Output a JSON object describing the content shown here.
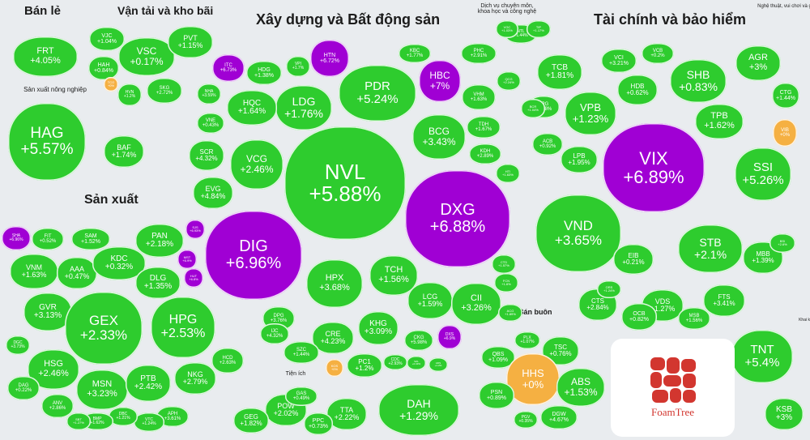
{
  "chart_data": {
    "type": "treemap",
    "colors": {
      "up": "#2ecc2e",
      "ceiling": "#a000d4",
      "flat": "#f5b042"
    },
    "sectors": [
      {
        "name": "Bán lẻ"
      },
      {
        "name": "Vận tải và kho bãi"
      },
      {
        "name": "Xây dựng và Bất động sản"
      },
      {
        "name": "Dịch vụ chuyên môn, khoa học và công nghệ"
      },
      {
        "name": "Tài chính và bảo hiểm"
      },
      {
        "name": "Nghệ thuật, vui chơi và giải trí"
      },
      {
        "name": "Sản xuất nông nghiệp"
      },
      {
        "name": "Sản xuất"
      },
      {
        "name": "Bán buôn"
      },
      {
        "name": "Tiện ích"
      },
      {
        "name": "Khai khoáng"
      }
    ],
    "stocks": [
      {
        "symbol": "FRT",
        "change": "+4.05%",
        "status": "up"
      },
      {
        "symbol": "VJC",
        "change": "+1.04%",
        "status": "up"
      },
      {
        "symbol": "VSC",
        "change": "+0.17%",
        "status": "up"
      },
      {
        "symbol": "PVT",
        "change": "+1.15%",
        "status": "up"
      },
      {
        "symbol": "HAH",
        "change": "+0.84%",
        "status": "up"
      },
      {
        "symbol": "SKG",
        "change": "+2.72%",
        "status": "up"
      },
      {
        "symbol": "HVN",
        "change": "+1.2%",
        "status": "up"
      },
      {
        "symbol": "TCO",
        "change": "+0%",
        "status": "flat"
      },
      {
        "symbol": "HAG",
        "change": "+5.57%",
        "status": "up"
      },
      {
        "symbol": "BAF",
        "change": "+1.74%",
        "status": "up"
      },
      {
        "symbol": "ITC",
        "change": "+6.73%",
        "status": "ceiling"
      },
      {
        "symbol": "HDG",
        "change": "+1.38%",
        "status": "up"
      },
      {
        "symbol": "VPI",
        "change": "+1.7%",
        "status": "up"
      },
      {
        "symbol": "HTN",
        "change": "+6.72%",
        "status": "ceiling"
      },
      {
        "symbol": "KBC",
        "change": "+1.77%",
        "status": "up"
      },
      {
        "symbol": "PHC",
        "change": "+2.91%",
        "status": "up"
      },
      {
        "symbol": "PDR",
        "change": "+5.24%",
        "status": "up"
      },
      {
        "symbol": "HBC",
        "change": "+7%",
        "status": "ceiling"
      },
      {
        "symbol": "VHM",
        "change": "+1.63%",
        "status": "up"
      },
      {
        "symbol": "LDG",
        "change": "+1.76%",
        "status": "up"
      },
      {
        "symbol": "HQC",
        "change": "+1.64%",
        "status": "up"
      },
      {
        "symbol": "NHA",
        "change": "+3.59%",
        "status": "up"
      },
      {
        "symbol": "VNE",
        "change": "+0.43%",
        "status": "up"
      },
      {
        "symbol": "BCG",
        "change": "+3.43%",
        "status": "up"
      },
      {
        "symbol": "TDH",
        "change": "+1.67%",
        "status": "up"
      },
      {
        "symbol": "KDH",
        "change": "+2.89%",
        "status": "up"
      },
      {
        "symbol": "VCG",
        "change": "+2.46%",
        "status": "up"
      },
      {
        "symbol": "SCR",
        "change": "+4.32%",
        "status": "up"
      },
      {
        "symbol": "NVL",
        "change": "+5.88%",
        "status": "up"
      },
      {
        "symbol": "EVG",
        "change": "+4.84%",
        "status": "up"
      },
      {
        "symbol": "DIG",
        "change": "+6.96%",
        "status": "ceiling"
      },
      {
        "symbol": "DXG",
        "change": "+6.88%",
        "status": "ceiling"
      },
      {
        "symbol": "HPX",
        "change": "+3.68%",
        "status": "up"
      },
      {
        "symbol": "TCH",
        "change": "+1.56%",
        "status": "up"
      },
      {
        "symbol": "LCG",
        "change": "+1.59%",
        "status": "up"
      },
      {
        "symbol": "CII",
        "change": "+3.26%",
        "status": "up"
      },
      {
        "symbol": "DPG",
        "change": "+3.76%",
        "status": "up"
      },
      {
        "symbol": "IJC",
        "change": "+4.32%",
        "status": "up"
      },
      {
        "symbol": "CRE",
        "change": "+4.23%",
        "status": "up"
      },
      {
        "symbol": "KHG",
        "change": "+3.09%",
        "status": "up"
      },
      {
        "symbol": "SZC",
        "change": "+1.44%",
        "status": "up"
      },
      {
        "symbol": "CKG",
        "change": "+5.98%",
        "status": "up"
      },
      {
        "symbol": "DXS",
        "change": "+6.9%",
        "status": "ceiling"
      },
      {
        "symbol": "PC1",
        "change": "+1.2%",
        "status": "up"
      },
      {
        "symbol": "KOS",
        "change": "+0%",
        "status": "flat"
      },
      {
        "symbol": "CDC",
        "change": "+2.93%",
        "status": "up"
      },
      {
        "symbol": "TCB",
        "change": "+1.81%",
        "status": "up"
      },
      {
        "symbol": "VCI",
        "change": "+3.21%",
        "status": "up"
      },
      {
        "symbol": "VCB",
        "change": "+0.2%",
        "status": "up"
      },
      {
        "symbol": "AGR",
        "change": "+3%",
        "status": "up"
      },
      {
        "symbol": "SHB",
        "change": "+0.83%",
        "status": "up"
      },
      {
        "symbol": "HDB",
        "change": "+0.62%",
        "status": "up"
      },
      {
        "symbol": "APG",
        "change": "+1.38%",
        "status": "up"
      },
      {
        "symbol": "CTG",
        "change": "+1.44%",
        "status": "up"
      },
      {
        "symbol": "VPB",
        "change": "+1.23%",
        "status": "up"
      },
      {
        "symbol": "TPB",
        "change": "+1.62%",
        "status": "up"
      },
      {
        "symbol": "VIB",
        "change": "+0%",
        "status": "flat"
      },
      {
        "symbol": "ACB",
        "change": "+0.92%",
        "status": "up"
      },
      {
        "symbol": "LPB",
        "change": "+1.95%",
        "status": "up"
      },
      {
        "symbol": "VIX",
        "change": "+6.89%",
        "status": "ceiling"
      },
      {
        "symbol": "SSI",
        "change": "+5.26%",
        "status": "up"
      },
      {
        "symbol": "VND",
        "change": "+3.65%",
        "status": "up"
      },
      {
        "symbol": "EIB",
        "change": "+0.21%",
        "status": "up"
      },
      {
        "symbol": "STB",
        "change": "+2.1%",
        "status": "up"
      },
      {
        "symbol": "MBB",
        "change": "+1.39%",
        "status": "up"
      },
      {
        "symbol": "CTS",
        "change": "+2.84%",
        "status": "up"
      },
      {
        "symbol": "VDS",
        "change": "+1.27%",
        "status": "up"
      },
      {
        "symbol": "FTS",
        "change": "+3.41%",
        "status": "up"
      },
      {
        "symbol": "OCB",
        "change": "+0.82%",
        "status": "up"
      },
      {
        "symbol": "MSB",
        "change": "+1.56%",
        "status": "up"
      },
      {
        "symbol": "TNT",
        "change": "+5.4%",
        "status": "up"
      },
      {
        "symbol": "KSB",
        "change": "+3%",
        "status": "up"
      },
      {
        "symbol": "QBS",
        "change": "+1.09%",
        "status": "up"
      },
      {
        "symbol": "PLX",
        "change": "+1.07%",
        "status": "up"
      },
      {
        "symbol": "TSC",
        "change": "+0.76%",
        "status": "up"
      },
      {
        "symbol": "HHS",
        "change": "+0%",
        "status": "flat"
      },
      {
        "symbol": "ABS",
        "change": "+1.53%",
        "status": "up"
      },
      {
        "symbol": "PSN",
        "change": "+0.89%",
        "status": "up"
      },
      {
        "symbol": "PGV",
        "change": "+0.35%",
        "status": "up"
      },
      {
        "symbol": "DGW",
        "change": "+4.67%",
        "status": "up"
      },
      {
        "symbol": "DAH",
        "change": "+1.29%",
        "status": "up"
      },
      {
        "symbol": "POW",
        "change": "+2.02%",
        "status": "up"
      },
      {
        "symbol": "TTA",
        "change": "+2.22%",
        "status": "up"
      },
      {
        "symbol": "GEG",
        "change": "+1.82%",
        "status": "up"
      },
      {
        "symbol": "PPC",
        "change": "+0.73%",
        "status": "up"
      },
      {
        "symbol": "GAS",
        "change": "+0.49%",
        "status": "up"
      },
      {
        "symbol": "SHA",
        "change": "+6.96%",
        "status": "ceiling"
      },
      {
        "symbol": "FIT",
        "change": "+0.52%",
        "status": "up"
      },
      {
        "symbol": "SAM",
        "change": "+1.52%",
        "status": "up"
      },
      {
        "symbol": "PAN",
        "change": "+2.18%",
        "status": "up"
      },
      {
        "symbol": "VNM",
        "change": "+1.63%",
        "status": "up"
      },
      {
        "symbol": "AAA",
        "change": "+0.47%",
        "status": "up"
      },
      {
        "symbol": "KDC",
        "change": "+0.32%",
        "status": "up"
      },
      {
        "symbol": "DLG",
        "change": "+1.35%",
        "status": "up"
      },
      {
        "symbol": "GVR",
        "change": "+3.13%",
        "status": "up"
      },
      {
        "symbol": "GEX",
        "change": "+2.33%",
        "status": "up"
      },
      {
        "symbol": "HPG",
        "change": "+2.53%",
        "status": "up"
      },
      {
        "symbol": "HSG",
        "change": "+2.46%",
        "status": "up"
      },
      {
        "symbol": "MSN",
        "change": "+3.23%",
        "status": "up"
      },
      {
        "symbol": "PTB",
        "change": "+2.42%",
        "status": "up"
      },
      {
        "symbol": "NKG",
        "change": "+2.79%",
        "status": "up"
      },
      {
        "symbol": "HCD",
        "change": "+2.63%",
        "status": "up"
      },
      {
        "symbol": "DAG",
        "change": "+0.22%",
        "status": "up"
      },
      {
        "symbol": "ANV",
        "change": "+2.86%",
        "status": "up"
      },
      {
        "symbol": "DGC",
        "change": "+3.73%",
        "status": "up"
      },
      {
        "symbol": "APH",
        "change": "+3.61%",
        "status": "up"
      },
      {
        "symbol": "VTC",
        "change": "+1.24%",
        "status": "up"
      },
      {
        "symbol": "DBC",
        "change": "+1.21%",
        "status": "up"
      },
      {
        "symbol": "BMP",
        "change": "+1.62%",
        "status": "up"
      },
      {
        "symbol": "SBT",
        "change": "+1.27%",
        "status": "up"
      },
      {
        "symbol": "SJS",
        "change": "+6.93%",
        "status": "ceiling"
      },
      {
        "symbol": "MST",
        "change": "+6.9%",
        "status": "ceiling"
      },
      {
        "symbol": "HUT",
        "change": "+6.8%",
        "status": "ceiling"
      },
      {
        "symbol": "NTL",
        "change": "+1.44%",
        "status": "up"
      },
      {
        "symbol": "BCR",
        "change": "+1.04%",
        "status": "up"
      },
      {
        "symbol": "QCG",
        "change": "+2.24%",
        "status": "up"
      },
      {
        "symbol": "HTI",
        "change": "+1.63%",
        "status": "up"
      },
      {
        "symbol": "TIP",
        "change": "+1.17%",
        "status": "up"
      },
      {
        "symbol": "CTD",
        "change": "+1.57%",
        "status": "up"
      },
      {
        "symbol": "FCN",
        "change": "+1.6%",
        "status": "up"
      },
      {
        "symbol": "BSI",
        "change": "+2.6%",
        "status": "up"
      },
      {
        "symbol": "VGC",
        "change": "+1.03%",
        "status": "up"
      },
      {
        "symbol": "ORS",
        "change": "+1.24%",
        "status": "up"
      },
      {
        "symbol": "ACG",
        "change": "+1.89%",
        "status": "up"
      },
      {
        "symbol": "SZL",
        "change": "+0.43%",
        "status": "up"
      },
      {
        "symbol": "ADS",
        "change": "+1.2%",
        "status": "up"
      }
    ]
  },
  "logo": {
    "text": "FoamTree"
  }
}
